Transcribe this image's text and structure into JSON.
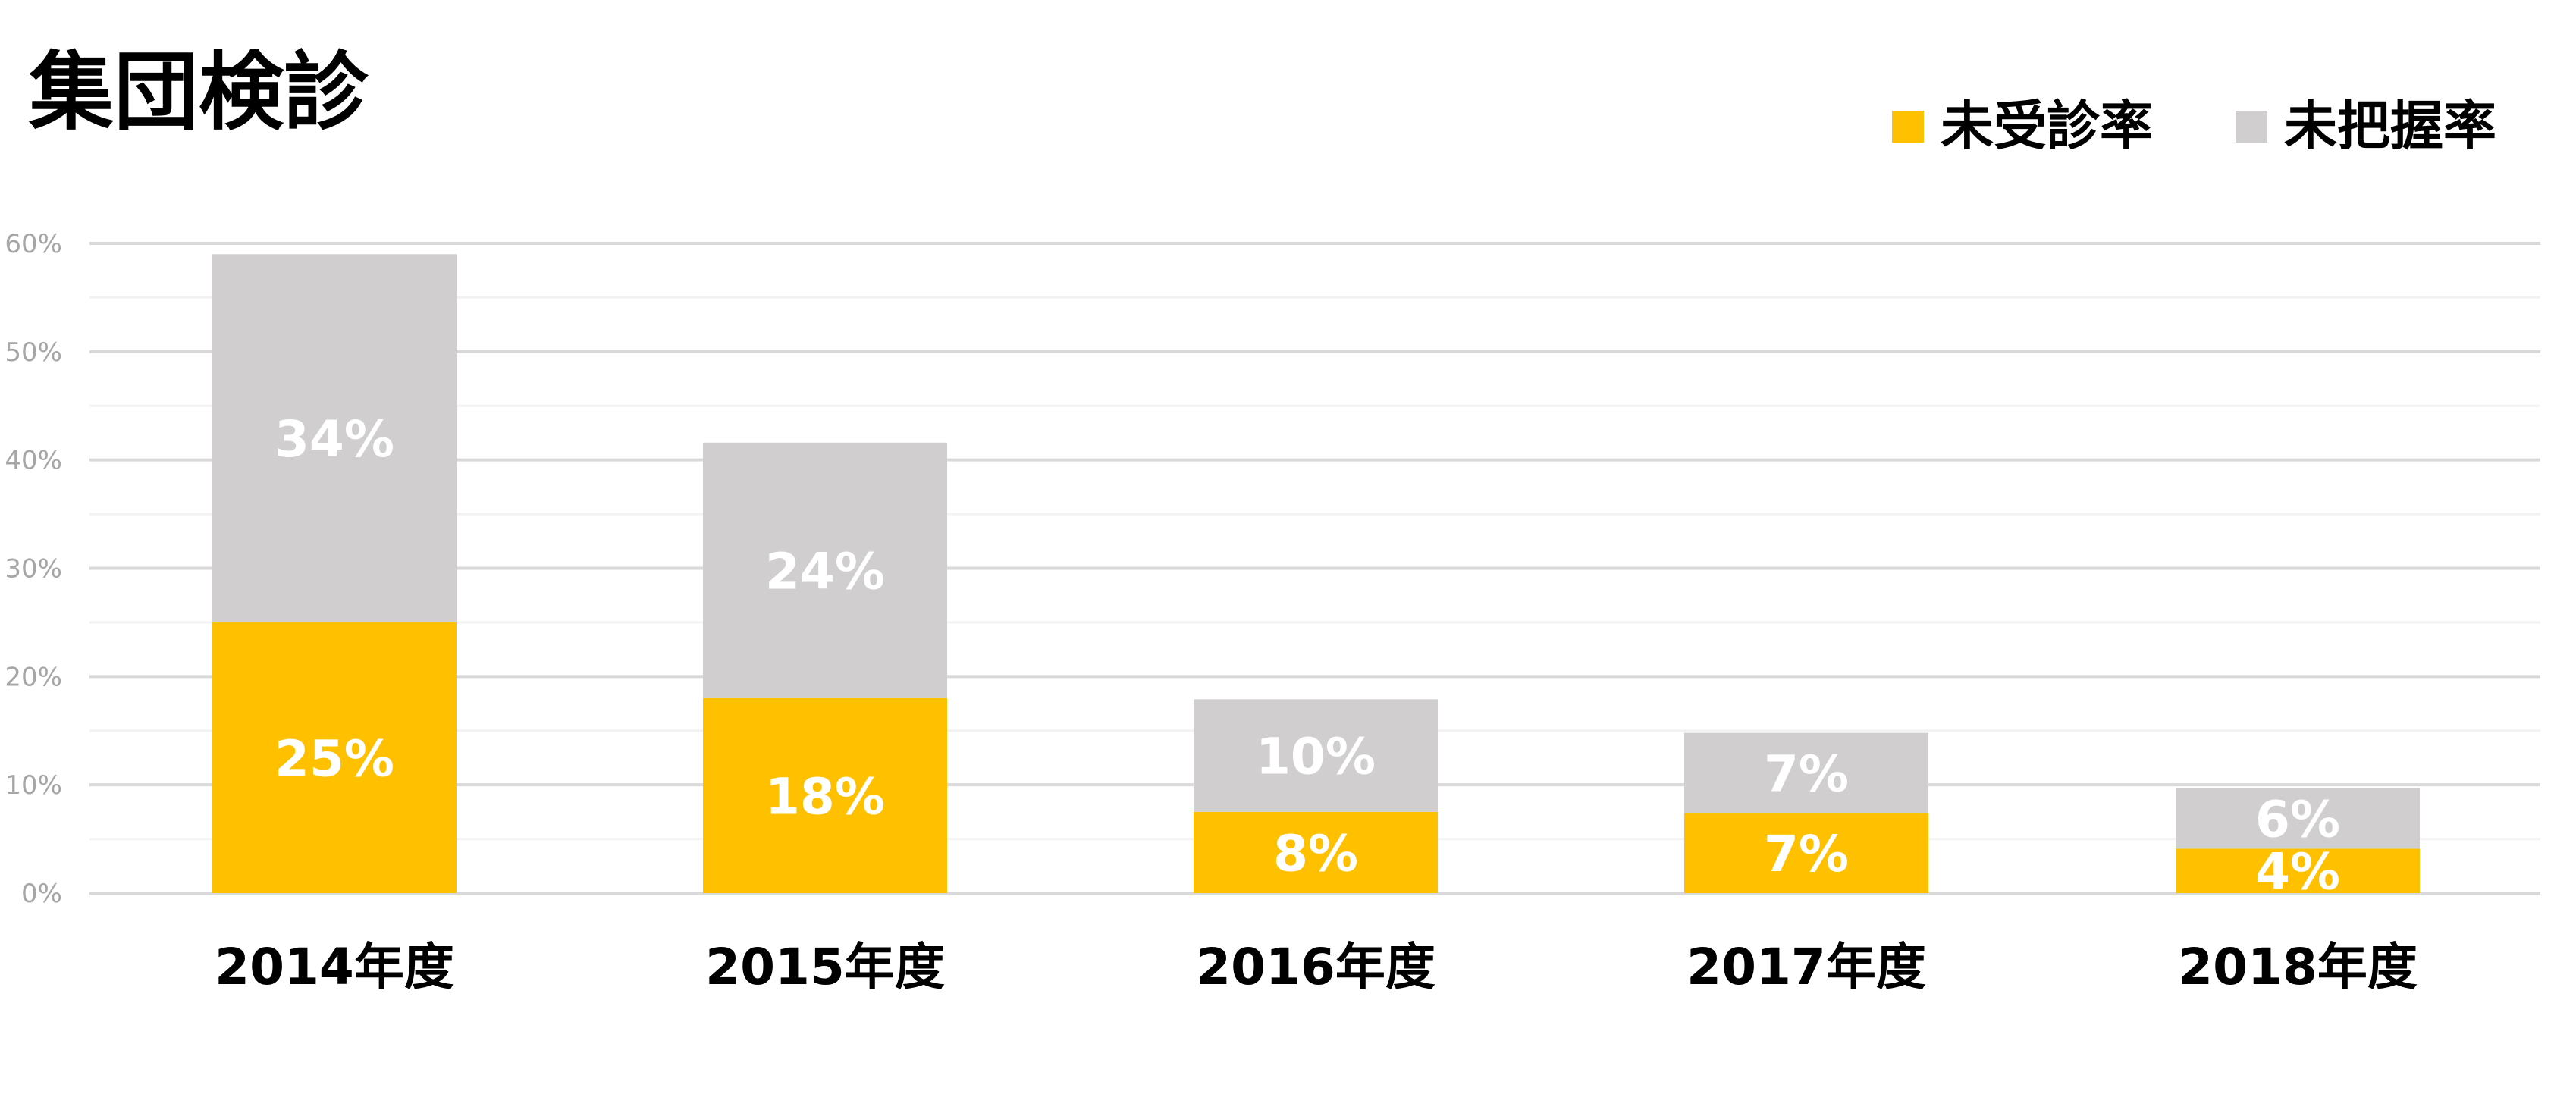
{
  "chart_data": {
    "type": "bar",
    "stacked": true,
    "title": "集団検診",
    "categories": [
      "2014年度",
      "2015年度",
      "2016年度",
      "2017年度",
      "2018年度"
    ],
    "series": [
      {
        "name": "未受診率",
        "color": "#FFC000",
        "values": [
          25,
          18,
          7.5,
          7.4,
          4.1
        ],
        "labels": [
          "25%",
          "18%",
          "8%",
          "7%",
          "4%"
        ]
      },
      {
        "name": "未把握率",
        "color": "#D0CECE",
        "values": [
          34,
          23.6,
          10.4,
          7.4,
          5.6
        ],
        "labels": [
          "34%",
          "24%",
          "10%",
          "7%",
          "6%"
        ]
      }
    ],
    "ylim": [
      0,
      60
    ],
    "yticks": [
      "0%",
      "10%",
      "20%",
      "30%",
      "40%",
      "50%",
      "60%"
    ],
    "grid": true,
    "legend_position": "top-right"
  }
}
